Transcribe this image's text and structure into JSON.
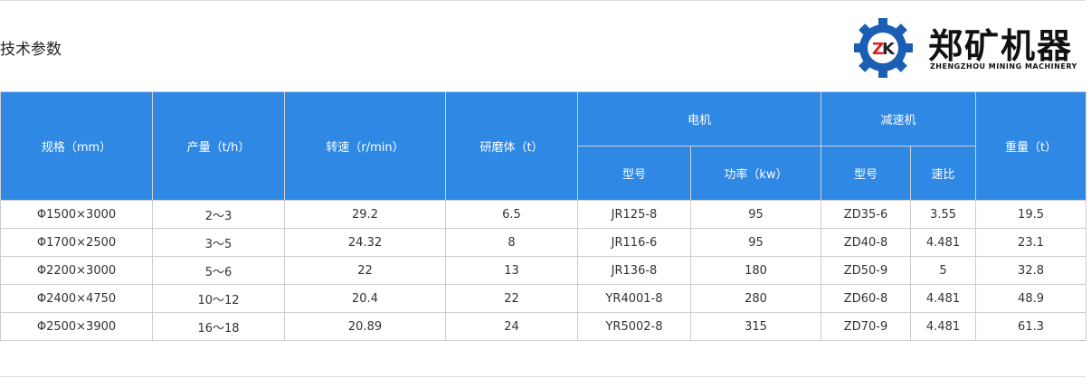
{
  "title": "技术参数",
  "headers": {
    "spec": "规格（mm）",
    "output": "产量（t/h）",
    "speed": "转速（r/min）",
    "media": "研磨体（t）",
    "motor": "电机",
    "motor_model": "型号",
    "motor_power": "功率（kw）",
    "reducer": "减速机",
    "reducer_model": "型号",
    "reducer_ratio": "速比",
    "weight": "重量（t）"
  },
  "rows": [
    [
      "Φ1500×3000",
      "2～3",
      "29.2",
      "6.5",
      "JR125-8",
      "95",
      "ZD35-6",
      "3.55",
      "19.5"
    ],
    [
      "Φ1700×2500",
      "3～5",
      "24.32",
      "8",
      "JR116-6",
      "95",
      "ZD40-8",
      "4.481",
      "23.1"
    ],
    [
      "Φ2200×3000",
      "5～6",
      "22",
      "13",
      "JR136-8",
      "180",
      "ZD50-9",
      "5",
      "32.8"
    ],
    [
      "Φ2400×4750",
      "10～12",
      "20.4",
      "22",
      "YR4001-8",
      "280",
      "ZD60-8",
      "4.481",
      "48.9"
    ],
    [
      "Φ2500×3900",
      "16～18",
      "20.89",
      "24",
      "YR5002-8",
      "315",
      "ZD70-9",
      "4.481",
      "61.3"
    ]
  ],
  "logo": {
    "mark": "ZK",
    "name": "郑矿机器",
    "subtitle": "ZHENGZHOU MINING MACHINERY"
  },
  "colors": {
    "header_bg": "#2f88e3",
    "logo_blue": "#1a5fb4",
    "logo_red": "#e02020"
  }
}
